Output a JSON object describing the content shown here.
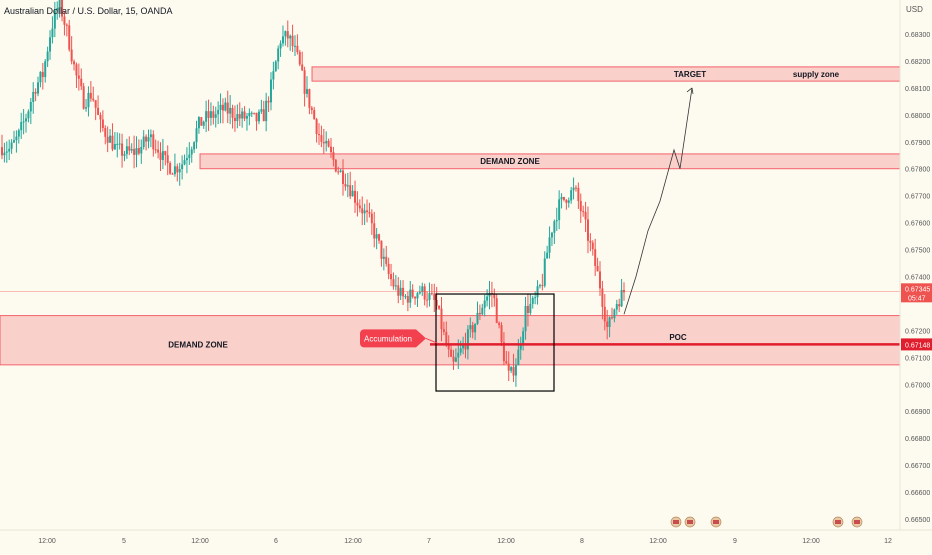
{
  "chart_data": {
    "type": "candlestick",
    "title": "Australian Dollar / U.S. Dollar, 15, OANDA",
    "y_axis_unit": "USD",
    "ylim": [
      0.6645,
      0.6852
    ],
    "y_ticks": [
      "0.68300",
      "0.68200",
      "0.68100",
      "0.68000",
      "0.67900",
      "0.67800",
      "0.67700",
      "0.67600",
      "0.67500",
      "0.67400",
      "0.67200",
      "0.67100",
      "0.67000",
      "0.66900",
      "0.66800",
      "0.66700",
      "0.66600",
      "0.66500"
    ],
    "x_tick_labels": [
      "12:00",
      "5",
      "12:00",
      "6",
      "12:00",
      "7",
      "12:00",
      "8",
      "12:00",
      "9",
      "12:00",
      "12"
    ],
    "current_price": {
      "value": 0.67345,
      "label": "0.67345",
      "countdown": "05:47"
    },
    "poc_price": {
      "value": 0.67148,
      "label": "0.67148"
    },
    "zones": [
      {
        "type": "supply",
        "top": 0.68178,
        "bottom": 0.68125
      },
      {
        "type": "demand",
        "top": 0.67855,
        "bottom": 0.678
      },
      {
        "type": "demand",
        "top": 0.67255,
        "bottom": 0.67072
      }
    ],
    "accumulation_box": {
      "top": 0.67335,
      "bottom": 0.66975
    },
    "projection_path": [
      0.6726,
      0.674,
      0.6757,
      0.6768,
      0.6787,
      0.678,
      0.681
    ],
    "price_path": [
      0.6788,
      0.6787,
      0.6792,
      0.68,
      0.681,
      0.6815,
      0.6832,
      0.6842,
      0.683,
      0.6815,
      0.6805,
      0.6808,
      0.6796,
      0.6792,
      0.6787,
      0.6786,
      0.6786,
      0.6788,
      0.6792,
      0.6788,
      0.6782,
      0.678,
      0.6782,
      0.6788,
      0.6796,
      0.6799,
      0.68,
      0.6802,
      0.6801,
      0.6799,
      0.6799,
      0.6798,
      0.68,
      0.6812,
      0.6828,
      0.6829,
      0.6822,
      0.681,
      0.68,
      0.679,
      0.6786,
      0.678,
      0.6776,
      0.677,
      0.6765,
      0.676,
      0.6752,
      0.6742,
      0.6736,
      0.6732,
      0.6733,
      0.6735,
      0.6733,
      0.673,
      0.6718,
      0.6706,
      0.6712,
      0.6718,
      0.6724,
      0.6732,
      0.6734,
      0.6715,
      0.6702,
      0.671,
      0.6728,
      0.673,
      0.6738,
      0.6756,
      0.6766,
      0.677,
      0.6772,
      0.6762,
      0.675,
      0.6738,
      0.672,
      0.673,
      0.67345
    ],
    "labels": {
      "target": "TARGET",
      "supply": "supply zone",
      "demand_upper": "DEMAND ZONE",
      "demand_lower": "DEMAND ZONE",
      "poc": "POC",
      "accumulation": "Accumulation"
    },
    "grid": false
  }
}
